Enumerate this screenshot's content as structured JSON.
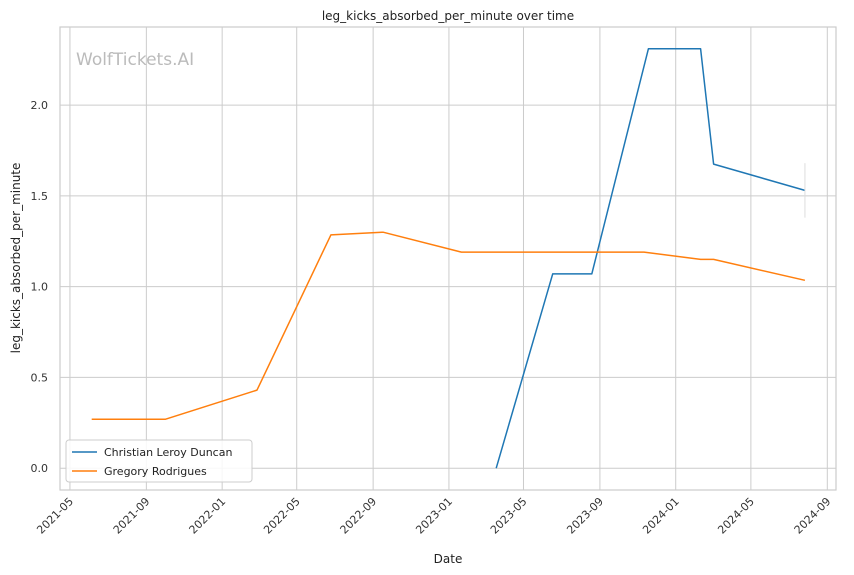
{
  "chart_data": {
    "type": "line",
    "title": "leg_kicks_absorbed_per_minute over time",
    "xlabel": "Date",
    "ylabel": "leg_kicks_absorbed_per_minute",
    "watermark": "WolfTickets.AI",
    "xlim": [
      "2021-04-15",
      "2024-09-15"
    ],
    "ylim": [
      -0.12,
      2.43
    ],
    "x_ticks": [
      "2021-05",
      "2021-09",
      "2022-01",
      "2022-05",
      "2022-09",
      "2023-01",
      "2023-05",
      "2023-09",
      "2024-01",
      "2024-05",
      "2024-09"
    ],
    "y_ticks": [
      "0.0",
      "0.5",
      "1.0",
      "1.5",
      "2.0"
    ],
    "grid": true,
    "legend_position": "lower-left",
    "series": [
      {
        "name": "Christian Leroy Duncan",
        "color": "#1f77b4",
        "points": [
          {
            "x": "2023-03-18",
            "y": 0.0
          },
          {
            "x": "2023-06-17",
            "y": 1.07
          },
          {
            "x": "2023-08-19",
            "y": 1.07
          },
          {
            "x": "2023-11-18",
            "y": 2.31
          },
          {
            "x": "2024-02-10",
            "y": 2.31
          },
          {
            "x": "2024-03-02",
            "y": 1.675
          },
          {
            "x": "2024-07-27",
            "y": 1.53
          }
        ],
        "error_bar": {
          "x": "2024-07-27",
          "low": 1.38,
          "high": 1.68
        }
      },
      {
        "name": "Gregory Rodrigues",
        "color": "#ff7f0e",
        "points": [
          {
            "x": "2021-06-05",
            "y": 0.27
          },
          {
            "x": "2021-10-02",
            "y": 0.27
          },
          {
            "x": "2022-02-26",
            "y": 0.43
          },
          {
            "x": "2022-06-25",
            "y": 1.285
          },
          {
            "x": "2022-09-17",
            "y": 1.3
          },
          {
            "x": "2023-01-21",
            "y": 1.19
          },
          {
            "x": "2023-11-11",
            "y": 1.19
          },
          {
            "x": "2024-02-10",
            "y": 1.15
          },
          {
            "x": "2024-03-02",
            "y": 1.15
          },
          {
            "x": "2024-07-27",
            "y": 1.035
          }
        ]
      }
    ]
  }
}
